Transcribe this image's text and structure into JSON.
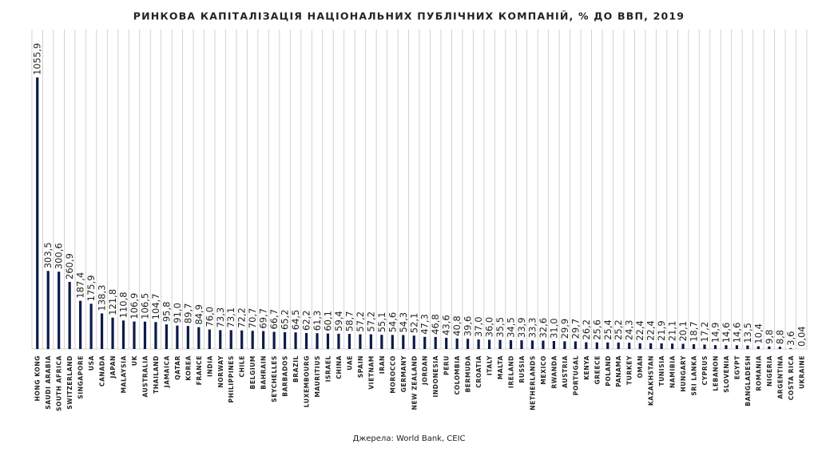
{
  "chart_data": {
    "type": "bar",
    "title": "РИНКОВА КАПІТАЛІЗАЦІЯ НАЦІОНАЛЬНИХ ПУБЛІЧНИХ КОМПАНІЙ, % ДО ВВП, 2019",
    "source": "Джерела: World Bank, CEIC",
    "color": "#0d1a4a",
    "categories": [
      "HONG KONG",
      "SAUDI ARABIA",
      "SOUTH AFRICA",
      "SWITZERLAND",
      "SINGAPORE",
      "USA",
      "CANADA",
      "JAPAN",
      "MALAYSIA",
      "UK",
      "AUSTRALIA",
      "THAILAND",
      "JAMAICA",
      "QATAR",
      "KOREA",
      "FRANCE",
      "INDIA",
      "NORWAY",
      "PHILIPPINES",
      "CHILE",
      "BELGIUM",
      "BAHRAIN",
      "SEYCHELLES",
      "BARBADOS",
      "BRAZIL",
      "LUXEMBOURG",
      "MAURITIUS",
      "ISRAEL",
      "CHINA",
      "UAE",
      "SPAIN",
      "VIETNAM",
      "IRAN",
      "MOROCCO",
      "GERMANY",
      "NEW ZEALAND",
      "JORDAN",
      "INDONESIA",
      "PERU",
      "COLOMBIA",
      "BERMUDA",
      "CROATIA",
      "ITALY",
      "MALTA",
      "IRELAND",
      "RUSSIA",
      "NETHERLANDS",
      "MEXICO",
      "RWANDA",
      "AUSTRIA",
      "PORTUGAL",
      "KENYA",
      "GREECE",
      "POLAND",
      "PANAMA",
      "TURKEY",
      "OMAN",
      "KAZAKHSTAN",
      "TUNISIA",
      "NAMIBIA",
      "HUNGARY",
      "SRI LANKA",
      "CYPRUS",
      "LEBANON",
      "SLOVENIA",
      "EGYPT",
      "BANGLADESH",
      "ROMANIA",
      "NIGERIA",
      "ARGENTINA",
      "COSTA RICA",
      "UKRAINE"
    ],
    "values": [
      1055.9,
      303.5,
      300.6,
      260.9,
      187.4,
      175.9,
      138.3,
      121.8,
      110.8,
      106.9,
      106.5,
      104.7,
      95.8,
      91.0,
      89.7,
      84.9,
      76.0,
      73.3,
      73.1,
      72.2,
      70.7,
      69.7,
      66.7,
      65.2,
      64.5,
      62.2,
      61.3,
      60.1,
      59.4,
      58.7,
      57.2,
      57.2,
      55.1,
      54.6,
      54.3,
      52.1,
      47.3,
      46.8,
      43.6,
      40.8,
      39.6,
      37.0,
      36.0,
      35.5,
      34.5,
      33.9,
      33.3,
      32.6,
      31.0,
      29.9,
      29.7,
      26.2,
      25.6,
      25.4,
      25.2,
      24.3,
      22.4,
      22.4,
      21.9,
      21.1,
      20.1,
      18.7,
      17.2,
      14.9,
      14.6,
      14.6,
      13.5,
      10.4,
      9.8,
      8.8,
      3.6,
      0.04
    ],
    "value_labels": [
      "1055,9",
      "303,5",
      "300,6",
      "260,9",
      "187,4",
      "175,9",
      "138,3",
      "121,8",
      "110,8",
      "106,9",
      "106,5",
      "104,7",
      "95,8",
      "91,0",
      "89,7",
      "84,9",
      "76,0",
      "73,3",
      "73,1",
      "72,2",
      "70,7",
      "69,7",
      "66,7",
      "65,2",
      "64,5",
      "62,2",
      "61,3",
      "60,1",
      "59,4",
      "58,7",
      "57,2",
      "57,2",
      "55,1",
      "54,6",
      "54,3",
      "52,1",
      "47,3",
      "46,8",
      "43,6",
      "40,8",
      "39,6",
      "37,0",
      "36,0",
      "35,5",
      "34,5",
      "33,9",
      "33,3",
      "32,6",
      "31,0",
      "29,9",
      "29,7",
      "26,2",
      "25,6",
      "25,4",
      "25,2",
      "24,3",
      "22,4",
      "22,4",
      "21,9",
      "21,1",
      "20,1",
      "18,7",
      "17,2",
      "14,9",
      "14,6",
      "14,6",
      "13,5",
      "10,4",
      "9,8",
      "8,8",
      "3,6",
      "0,04"
    ]
  }
}
